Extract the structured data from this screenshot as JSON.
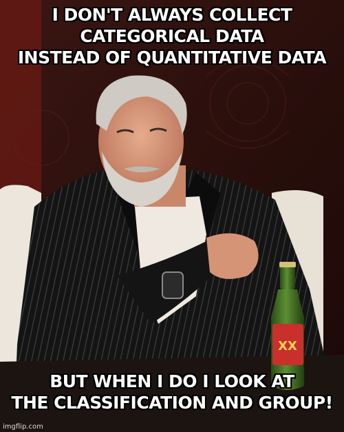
{
  "meme": {
    "top_text_lines": [
      "I DON'T ALWAYS COLLECT",
      "CATEGORICAL DATA",
      "INSTEAD OF QUANTITATIVE DATA"
    ],
    "bottom_text_lines": [
      "BUT WHEN I DO I LOOK AT",
      "THE CLASSIFICATION AND GROUP!"
    ],
    "watermark": "imgflip.com",
    "beer_label": "XX"
  },
  "colors": {
    "background": "#2a0f0c",
    "jacket": "#141414",
    "shirt": "#efe9e1",
    "skin": "#d89a7c",
    "beard": "#cfcac3",
    "bottle": "#3f6a24",
    "label": "#c9302c"
  }
}
